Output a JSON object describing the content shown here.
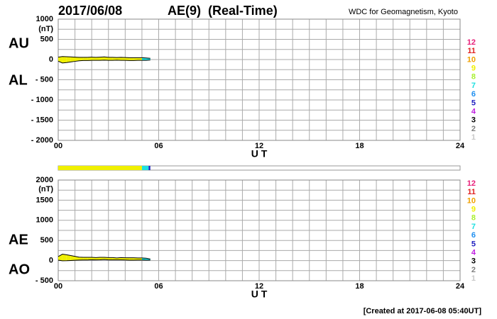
{
  "header": {
    "date": "2017/06/08",
    "title": "AE(9)  (Real-Time)",
    "source": "WDC for Geomagnetism, Kyoto"
  },
  "footer": "[Created at 2017-06-08 05:40UT]",
  "stations": {
    "starts": [
      0,
      5.0,
      5.4
    ],
    "ends": [
      5.0,
      5.4,
      5.5
    ],
    "counts": [
      9,
      7,
      5
    ]
  },
  "station_legend": {
    "values": [
      12,
      11,
      10,
      9,
      8,
      7,
      6,
      5,
      4,
      3,
      2,
      1
    ],
    "colors": [
      "#e8207a",
      "#e02020",
      "#f0a000",
      "#f0f000",
      "#a8f030",
      "#20e0e0",
      "#2090f0",
      "#2020c0",
      "#c020e0",
      "#000000",
      "#808080",
      "#c8c8c8"
    ]
  },
  "chart_data": [
    {
      "type": "band",
      "unit": "(nT)",
      "xlabel": "U T",
      "x": [
        0,
        0.25,
        0.5,
        0.75,
        1,
        1.25,
        1.5,
        1.75,
        2,
        2.25,
        2.5,
        2.75,
        3,
        3.25,
        3.5,
        3.75,
        4,
        4.25,
        4.5,
        4.75,
        5,
        5.25,
        5.5
      ],
      "series": [
        {
          "name": "AU",
          "color": "#000000",
          "values": [
            60,
            75,
            70,
            65,
            60,
            55,
            55,
            55,
            60,
            55,
            60,
            65,
            55,
            55,
            50,
            55,
            50,
            45,
            45,
            45,
            45,
            40,
            30
          ]
        },
        {
          "name": "AL",
          "color": "#000000",
          "values": [
            -40,
            -85,
            -75,
            -60,
            -45,
            -30,
            -25,
            -25,
            -20,
            -20,
            -20,
            -15,
            -20,
            -20,
            -15,
            -20,
            -20,
            -25,
            -25,
            -20,
            -20,
            -20,
            -10
          ]
        }
      ],
      "xlim": [
        0,
        24
      ],
      "xticks": [
        {
          "value": 0,
          "label": "00"
        },
        {
          "value": 6,
          "label": "06"
        },
        12,
        18,
        24
      ],
      "minor_xticks": [
        1,
        2,
        3,
        4,
        5,
        7,
        8,
        9,
        10,
        11,
        13,
        14,
        15,
        16,
        17,
        19,
        20,
        21,
        22,
        23
      ],
      "ylim": [
        -2000,
        1000
      ],
      "yticks": [
        1000,
        500,
        0,
        {
          "value": -500,
          "label": "- 500"
        },
        {
          "value": -1000,
          "label": "- 1000"
        },
        {
          "value": -1500,
          "label": "- 1500"
        },
        {
          "value": -2000,
          "label": "- 2000"
        }
      ],
      "minor_yticks": [
        750,
        250,
        -250,
        -750,
        -1250,
        -1750
      ],
      "grid": true
    },
    {
      "type": "band",
      "unit": "(nT)",
      "xlabel": "U T",
      "x": [
        0,
        0.25,
        0.5,
        0.75,
        1,
        1.25,
        1.5,
        1.75,
        2,
        2.25,
        2.5,
        2.75,
        3,
        3.25,
        3.5,
        3.75,
        4,
        4.25,
        4.5,
        4.75,
        5,
        5.25,
        5.5
      ],
      "series": [
        {
          "name": "AE",
          "color": "#000000",
          "values": [
            100,
            160,
            145,
            125,
            105,
            85,
            80,
            80,
            80,
            75,
            80,
            80,
            75,
            75,
            65,
            75,
            70,
            70,
            70,
            65,
            65,
            60,
            40
          ]
        },
        {
          "name": "AO",
          "color": "#000000",
          "values": [
            10,
            -5,
            -2.5,
            2.5,
            7.5,
            12.5,
            15,
            15,
            20,
            17.5,
            20,
            25,
            17.5,
            17.5,
            17.5,
            17.5,
            15,
            10,
            10,
            12.5,
            12.5,
            10,
            10
          ]
        }
      ],
      "xlim": [
        0,
        24
      ],
      "xticks": [
        {
          "value": 0,
          "label": "00"
        },
        {
          "value": 6,
          "label": "06"
        },
        12,
        18,
        24
      ],
      "minor_xticks": [
        1,
        2,
        3,
        4,
        5,
        7,
        8,
        9,
        10,
        11,
        13,
        14,
        15,
        16,
        17,
        19,
        20,
        21,
        22,
        23
      ],
      "ylim": [
        -500,
        2000
      ],
      "yticks": [
        2000,
        1500,
        1000,
        500,
        0,
        {
          "value": -500,
          "label": "- 500"
        }
      ],
      "minor_yticks": [
        1750,
        1250,
        750,
        250,
        -250
      ],
      "grid": true
    }
  ]
}
